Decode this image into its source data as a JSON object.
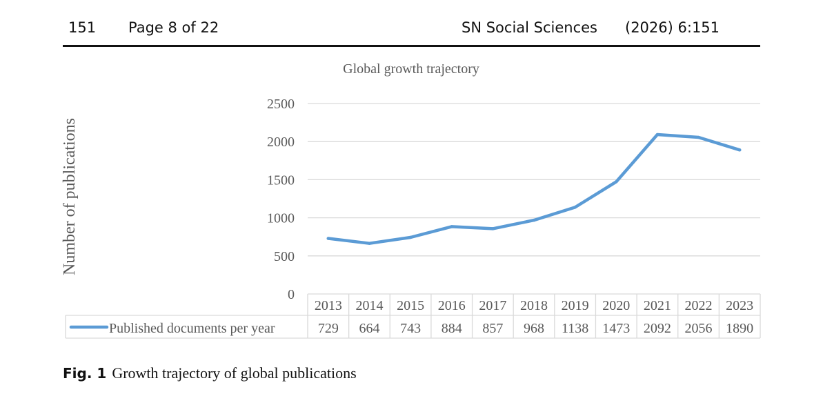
{
  "header": {
    "page_number": "151",
    "page_of": "Page 8 of 22",
    "journal": "SN Social Sciences",
    "citation": "(2026) 6:151"
  },
  "figure": {
    "label": "Fig. 1",
    "caption": "Growth trajectory of global publications"
  },
  "chart_data": {
    "type": "line",
    "title": "Global growth trajectory",
    "xlabel": "",
    "ylabel": "Number of publications",
    "categories": [
      "2013",
      "2014",
      "2015",
      "2016",
      "2017",
      "2018",
      "2019",
      "2020",
      "2021",
      "2022",
      "2023"
    ],
    "series": [
      {
        "name": "Published documents per year",
        "values": [
          729,
          664,
          743,
          884,
          857,
          968,
          1138,
          1473,
          2092,
          2056,
          1890
        ],
        "color": "#5b9bd5"
      }
    ],
    "ylim": [
      0,
      2500
    ],
    "yticks": [
      "0",
      "500",
      "1000",
      "1500",
      "2000",
      "2500"
    ],
    "grid": true,
    "legend": "data-table-bottom"
  }
}
